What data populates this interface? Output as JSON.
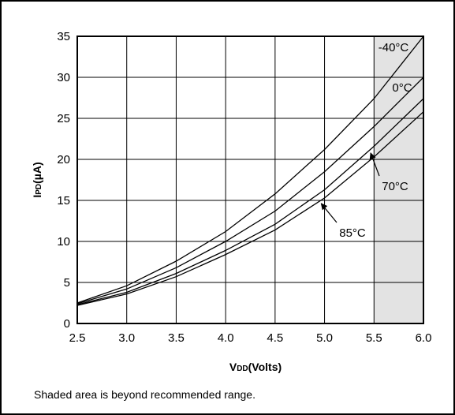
{
  "chart_data": {
    "type": "line",
    "xlabel_main": "V",
    "xlabel_sub": "DD",
    "xlabel_rest": "(Volts)",
    "ylabel_main": "I",
    "ylabel_sub": "PD",
    "ylabel_rest": "(µA)",
    "xlim": [
      2.5,
      6.0
    ],
    "ylim": [
      0,
      35
    ],
    "x_ticks": [
      "2.5",
      "3.0",
      "3.5",
      "4.0",
      "4.5",
      "5.0",
      "5.5",
      "6.0"
    ],
    "y_ticks": [
      "0",
      "5",
      "10",
      "15",
      "20",
      "25",
      "30",
      "35"
    ],
    "grid": true,
    "shaded_region": {
      "x_from": 5.5,
      "x_to": 6.0,
      "color": "#e3e3e3"
    },
    "series": [
      {
        "name": "-40°C",
        "x": [
          2.5,
          3.0,
          3.5,
          4.0,
          4.5,
          5.0,
          5.5,
          6.0
        ],
        "values": [
          2.5,
          4.6,
          7.6,
          11.2,
          15.8,
          21.2,
          27.4,
          35.0
        ]
      },
      {
        "name": "0°C",
        "x": [
          2.5,
          3.0,
          3.5,
          4.0,
          4.5,
          5.0,
          5.5,
          6.0
        ],
        "values": [
          2.4,
          4.2,
          6.8,
          10.0,
          13.7,
          18.5,
          24.0,
          30.0
        ]
      },
      {
        "name": "70°C",
        "x": [
          2.5,
          3.0,
          3.5,
          4.0,
          4.5,
          5.0,
          5.5,
          6.0
        ],
        "values": [
          2.3,
          3.8,
          6.1,
          8.9,
          12.1,
          16.3,
          21.6,
          27.4
        ]
      },
      {
        "name": "85°C",
        "x": [
          2.5,
          3.0,
          3.5,
          4.0,
          4.5,
          5.0,
          5.5,
          6.0
        ],
        "values": [
          2.2,
          3.6,
          5.7,
          8.4,
          11.4,
          15.3,
          20.3,
          25.8
        ]
      }
    ],
    "annotations": [
      {
        "text": "-40°C",
        "series": 0
      },
      {
        "text": "0°C",
        "series": 1
      },
      {
        "text": "70°C",
        "series": 2,
        "arrow_to_x": 5.45
      },
      {
        "text": "85°C",
        "series": 3,
        "arrow_to_x": 4.95
      }
    ]
  },
  "footnote": "Shaded area is beyond recommended range."
}
